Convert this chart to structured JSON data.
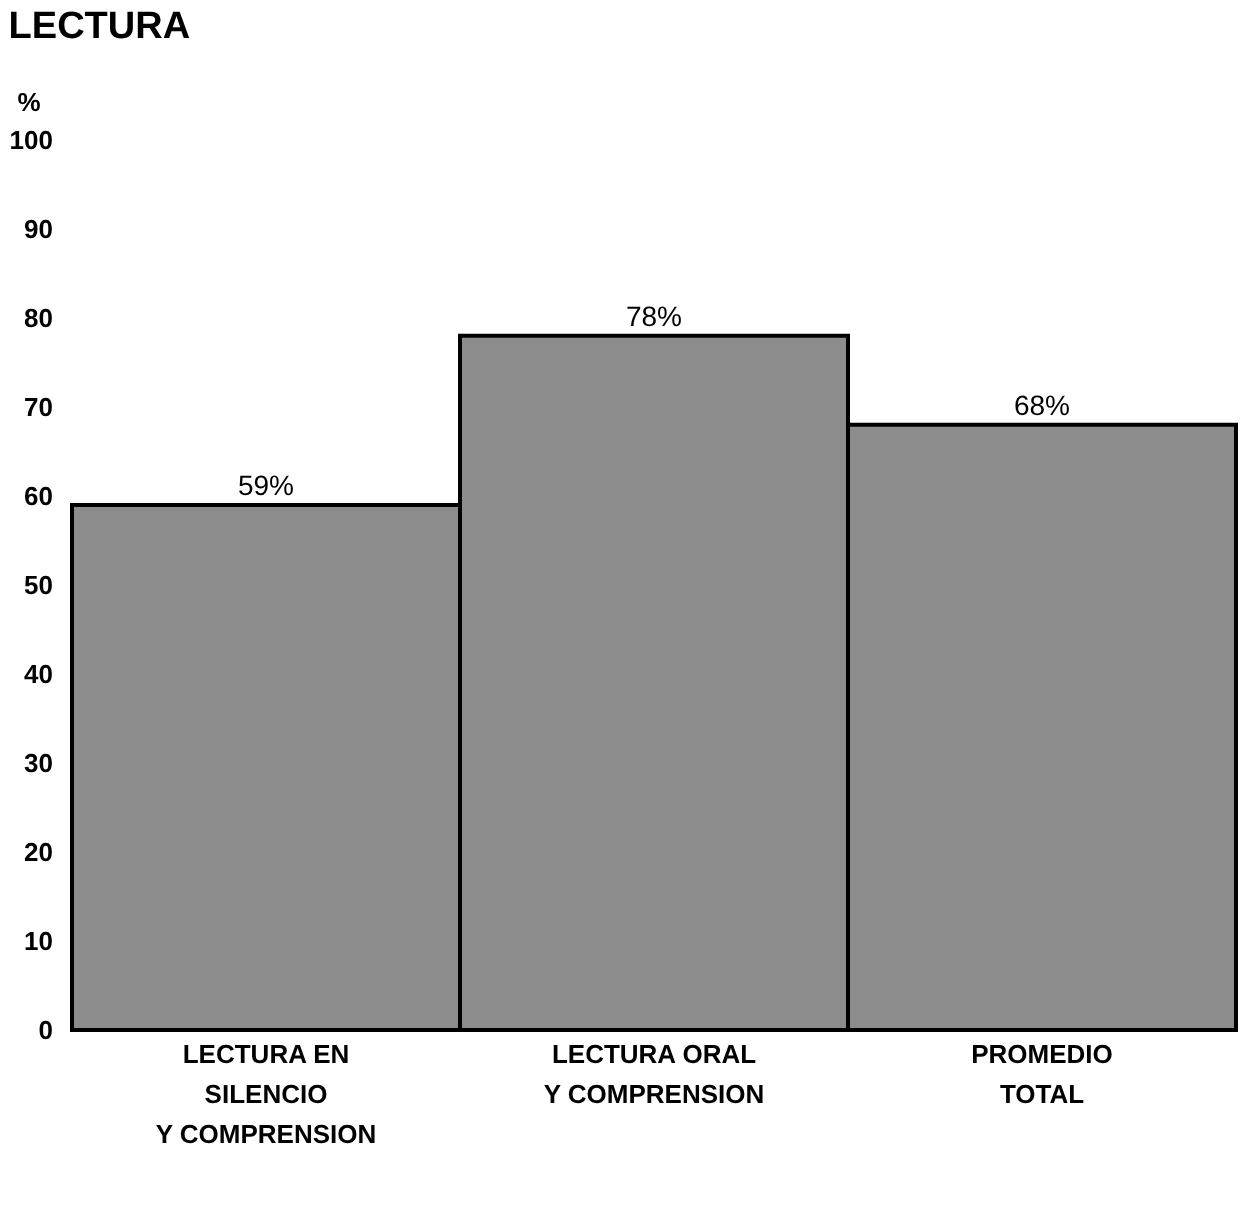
{
  "chart_data": {
    "type": "bar",
    "title": "LECTURA",
    "ylabel": "%",
    "categories": [
      "LECTURA EN\nSILENCIO\nY COMPRENSION",
      "LECTURA ORAL\nY COMPRENSION",
      "PROMEDIO\nTOTAL"
    ],
    "values": [
      59,
      78,
      68
    ],
    "value_labels": [
      "59%",
      "78%",
      "68%"
    ],
    "color": "#8c8c8c",
    "ylim": [
      0,
      100
    ],
    "yticks": [
      0,
      10,
      20,
      30,
      40,
      50,
      60,
      70,
      80,
      90,
      100
    ],
    "grid": false
  }
}
